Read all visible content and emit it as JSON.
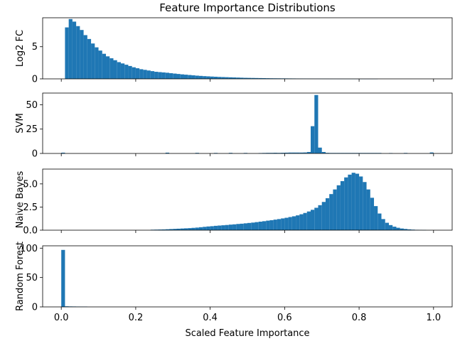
{
  "chart_data": {
    "type": "bar",
    "title": "Feature Importance Distributions",
    "xlabel": "Scaled Feature Importance",
    "xlim": [
      -0.05,
      1.05
    ],
    "bin_start": 0.0,
    "bin_width": 0.01,
    "x_ticks": [
      0.0,
      0.2,
      0.4,
      0.6,
      0.8,
      1.0
    ],
    "x_tick_labels": [
      "0.0",
      "0.2",
      "0.4",
      "0.6",
      "0.8",
      "1.0"
    ],
    "bar_color": "#1f77b4",
    "grid": false,
    "panels": [
      {
        "ylabel": "Log2 FC",
        "ylim": [
          0,
          9.5
        ],
        "yticks": [
          0,
          5
        ],
        "ytick_labels": [
          "0",
          "5"
        ],
        "values": [
          0,
          8.0,
          9.3,
          8.9,
          8.2,
          7.6,
          6.8,
          6.2,
          5.5,
          4.9,
          4.4,
          3.9,
          3.5,
          3.2,
          2.9,
          2.6,
          2.4,
          2.2,
          2.0,
          1.8,
          1.65,
          1.5,
          1.4,
          1.3,
          1.2,
          1.1,
          1.05,
          1.0,
          0.95,
          0.88,
          0.82,
          0.76,
          0.7,
          0.65,
          0.6,
          0.55,
          0.5,
          0.46,
          0.42,
          0.39,
          0.36,
          0.33,
          0.3,
          0.28,
          0.26,
          0.24,
          0.22,
          0.2,
          0.18,
          0.16,
          0.15,
          0.14,
          0.13,
          0.12,
          0.11,
          0.1,
          0.09,
          0.085,
          0.08,
          0.075,
          0.07,
          0.065,
          0.06,
          0.055,
          0.05,
          0.045,
          0.04,
          0.035,
          0.03,
          0.028,
          0.025,
          0.02,
          0.018,
          0.015,
          0.012,
          0.01,
          0.008,
          0.006,
          0.005,
          0.004,
          0.003,
          0.002,
          0.002,
          0.001,
          0.001,
          0,
          0,
          0,
          0,
          0,
          0,
          0,
          0,
          0,
          0,
          0,
          0,
          0,
          0,
          0
        ]
      },
      {
        "ylabel": "SVM",
        "ylim": [
          0,
          62
        ],
        "yticks": [
          0,
          25,
          50
        ],
        "ytick_labels": [
          "0",
          "25",
          "50"
        ],
        "values": [
          0.8,
          0,
          0,
          0,
          0,
          0,
          0,
          0,
          0,
          0,
          0,
          0,
          0,
          0,
          0,
          0,
          0,
          0,
          0,
          0,
          0,
          0,
          0,
          0,
          0,
          0,
          0,
          0,
          0.8,
          0,
          0,
          0,
          0,
          0,
          0,
          0,
          0.6,
          0,
          0,
          0,
          0,
          0.5,
          0,
          0,
          0,
          0.6,
          0,
          0,
          0,
          0.5,
          0,
          0,
          0,
          0.4,
          0.5,
          0.6,
          0.6,
          0.7,
          0.6,
          0.7,
          0.8,
          0.9,
          0.9,
          0.9,
          0.9,
          1.0,
          1.5,
          28,
          60,
          6,
          1.5,
          0.6,
          0.5,
          0.5,
          0.5,
          0.5,
          0.5,
          0.5,
          0.5,
          0.5,
          0.5,
          0.5,
          0.5,
          0.5,
          0.5,
          0.5,
          0,
          0,
          0.4,
          0,
          0,
          0,
          0.5,
          0,
          0,
          0,
          0,
          0,
          0,
          1.0
        ]
      },
      {
        "ylabel": "Naive Bayes",
        "ylim": [
          0,
          6.6
        ],
        "yticks": [
          0,
          2.5,
          5.0
        ],
        "ytick_labels": [
          "0.0",
          "2.5",
          "5.0"
        ],
        "values": [
          0,
          0,
          0,
          0,
          0,
          0,
          0,
          0,
          0,
          0,
          0,
          0,
          0,
          0,
          0,
          0,
          0,
          0,
          0,
          0,
          0,
          0,
          0,
          0,
          0.05,
          0.06,
          0.07,
          0.08,
          0.1,
          0.12,
          0.14,
          0.16,
          0.18,
          0.2,
          0.22,
          0.25,
          0.28,
          0.32,
          0.36,
          0.4,
          0.43,
          0.47,
          0.5,
          0.53,
          0.56,
          0.6,
          0.63,
          0.67,
          0.7,
          0.74,
          0.78,
          0.82,
          0.87,
          0.92,
          0.97,
          1.03,
          1.08,
          1.14,
          1.2,
          1.27,
          1.34,
          1.42,
          1.5,
          1.6,
          1.72,
          1.86,
          2.02,
          2.2,
          2.42,
          2.7,
          3.05,
          3.45,
          3.9,
          4.4,
          4.85,
          5.3,
          5.7,
          6.0,
          6.2,
          6.1,
          5.8,
          5.2,
          4.4,
          3.5,
          2.6,
          1.8,
          1.2,
          0.8,
          0.55,
          0.38,
          0.26,
          0.18,
          0.13,
          0.09,
          0.06,
          0.04,
          0.03,
          0.02,
          0,
          0
        ]
      },
      {
        "ylabel": "Random Forest",
        "ylim": [
          0,
          104
        ],
        "yticks": [
          0,
          50,
          100
        ],
        "ytick_labels": [
          "0",
          "50",
          "100"
        ],
        "values": [
          97,
          1.0,
          0.8,
          0.7,
          0.6,
          0.5,
          0.5,
          0,
          0,
          0,
          0,
          0,
          0,
          0,
          0,
          0,
          0,
          0,
          0,
          0,
          0,
          0,
          0,
          0,
          0,
          0,
          0,
          0,
          0,
          0,
          0,
          0,
          0,
          0,
          0,
          0,
          0,
          0,
          0,
          0,
          0,
          0,
          0,
          0,
          0,
          0,
          0,
          0,
          0,
          0,
          0,
          0,
          0,
          0,
          0,
          0,
          0,
          0,
          0,
          0,
          0,
          0,
          0,
          0,
          0,
          0,
          0,
          0,
          0,
          0,
          0,
          0,
          0,
          0,
          0,
          0,
          0,
          0,
          0,
          0,
          0,
          0,
          0,
          0,
          0,
          0,
          0,
          0,
          0,
          0,
          0,
          0,
          0,
          0,
          0,
          0,
          0,
          0,
          0,
          0
        ]
      }
    ]
  }
}
